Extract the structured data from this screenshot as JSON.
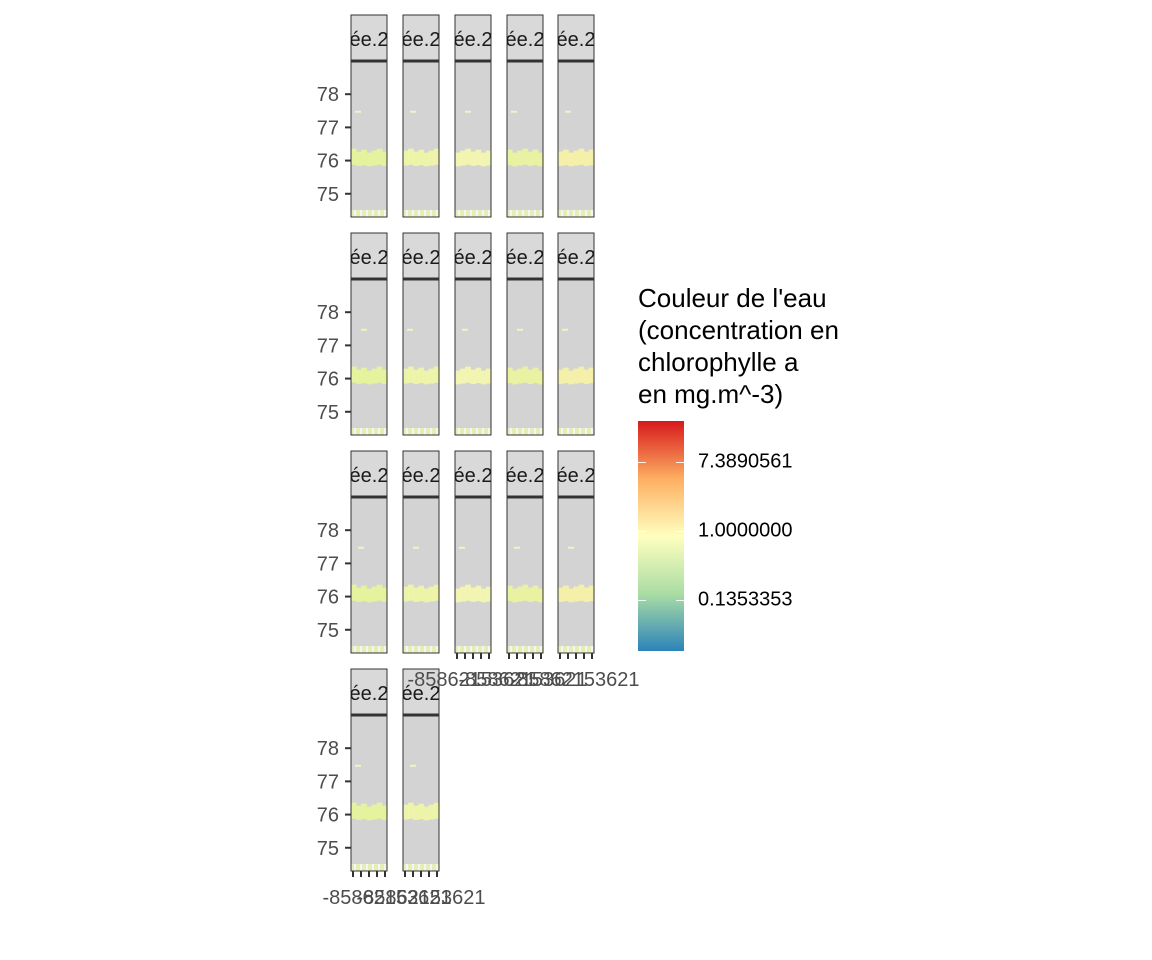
{
  "chart_data": {
    "type": "heatmap",
    "description_facets": "faceted raster maps of water colour, one panel per date",
    "facet_strip_label": "ée.2",
    "facets": [
      {
        "strip": "ée.2",
        "has_x_axis": false
      },
      {
        "strip": "ée.2",
        "has_x_axis": false
      },
      {
        "strip": "ée.2",
        "has_x_axis": false
      },
      {
        "strip": "ée.2",
        "has_x_axis": false
      },
      {
        "strip": "ée.2",
        "has_x_axis": false
      },
      {
        "strip": "ée.2",
        "has_x_axis": false
      },
      {
        "strip": "ée.2",
        "has_x_axis": false
      },
      {
        "strip": "ée.2",
        "has_x_axis": false
      },
      {
        "strip": "ée.2",
        "has_x_axis": false
      },
      {
        "strip": "ée.2",
        "has_x_axis": false
      },
      {
        "strip": "ée.2",
        "has_x_axis": false
      },
      {
        "strip": "ée.2",
        "has_x_axis": false
      },
      {
        "strip": "ée.2",
        "has_x_axis": true
      },
      {
        "strip": "ée.2",
        "has_x_axis": true
      },
      {
        "strip": "ée.2",
        "has_x_axis": true
      },
      {
        "strip": "ée.2",
        "has_x_axis": true
      },
      {
        "strip": "ée.2",
        "has_x_axis": true
      }
    ],
    "y_axis": {
      "ticks": [
        75,
        76,
        77,
        78
      ],
      "labels": [
        "75",
        "76",
        "77",
        "78"
      ],
      "range": [
        74.3,
        79.0
      ]
    },
    "x_axis": {
      "tick_count": 5,
      "label_text": "-85862153621",
      "compact_label_text": "-85862153621"
    },
    "fill_scale": {
      "title_lines": [
        "Couleur de l'eau",
        "(concentration en",
        "chlorophylle a",
        "en mg.m^-3)"
      ],
      "transform": "log",
      "breaks": [
        {
          "label": "7.3890561",
          "log_value": 2
        },
        {
          "label": "1.0000000",
          "log_value": 0
        },
        {
          "label": "0.1353353",
          "log_value": -2
        }
      ],
      "log_limits": [
        -3.5,
        3.2
      ],
      "palette": [
        "#2b83ba",
        "#abdda4",
        "#ffffbf",
        "#fdae61",
        "#d7191c"
      ]
    },
    "panel_background": "#d3d3d3",
    "strip_background": "#d9d9d9",
    "bloom_colors": [
      "#e6f39b",
      "#eef5a8",
      "#f3f7b0",
      "#eaf2a0",
      "#f6f1a6"
    ]
  }
}
